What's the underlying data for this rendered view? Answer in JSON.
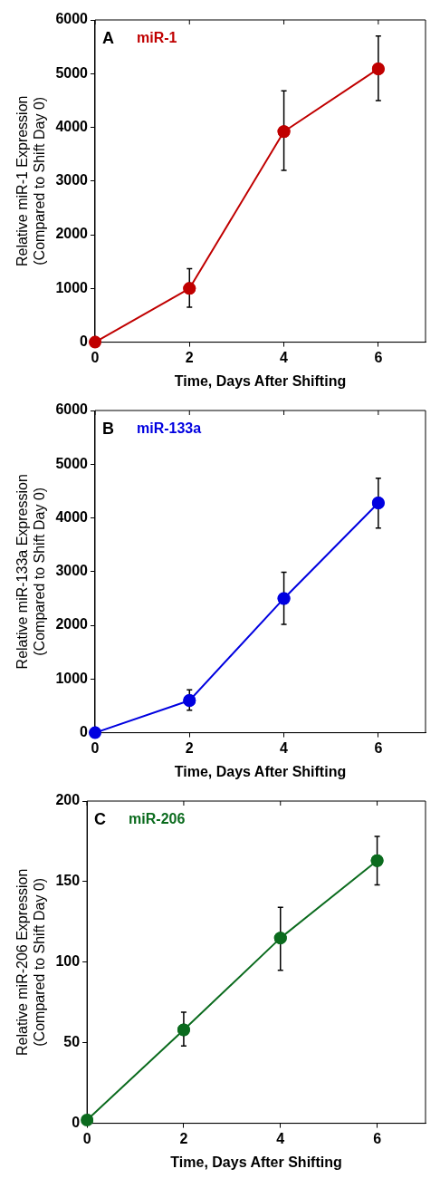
{
  "chart_data": [
    {
      "type": "line",
      "annotations": [
        "A"
      ],
      "xlabel": "Time, Days After Shifting",
      "ylabel": "Relative miR-1 Expression\n(Compared to Shift Day 0)",
      "x": [
        0,
        2,
        4,
        6
      ],
      "xlim": [
        0,
        7
      ],
      "xticks": [
        0,
        2,
        4,
        6
      ],
      "ylim": [
        0,
        6000
      ],
      "yticks": [
        0,
        1000,
        2000,
        3000,
        4000,
        5000,
        6000
      ],
      "marker": "circle",
      "line_style": "solid",
      "grid": false,
      "legend": "top left",
      "series": [
        {
          "name": "miR-1",
          "color": "#c00000",
          "values": [
            0,
            1000,
            3920,
            5090
          ],
          "errors": [
            null,
            [
              650,
              1370
            ],
            [
              3200,
              4680
            ],
            [
              4500,
              5700
            ]
          ]
        }
      ]
    },
    {
      "type": "line",
      "annotations": [
        "B"
      ],
      "xlabel": "Time, Days After Shifting",
      "ylabel": "Relative miR-133a Expression\n(Compared to Shift Day 0)",
      "x": [
        0,
        2,
        4,
        6
      ],
      "xlim": [
        0,
        7
      ],
      "xticks": [
        0,
        2,
        4,
        6
      ],
      "ylim": [
        0,
        6000
      ],
      "yticks": [
        0,
        1000,
        2000,
        3000,
        4000,
        5000,
        6000
      ],
      "marker": "circle",
      "line_style": "solid",
      "grid": false,
      "legend": "top left",
      "series": [
        {
          "name": "miR-133a",
          "color": "#0000e0",
          "values": [
            0,
            600,
            2500,
            4280
          ],
          "errors": [
            null,
            [
              420,
              800
            ],
            [
              2020,
              2990
            ],
            [
              3810,
              4740
            ]
          ]
        }
      ]
    },
    {
      "type": "line",
      "annotations": [
        "C"
      ],
      "xlabel": "Time, Days After Shifting",
      "ylabel": "Relative miR-206 Expression\n(Compared to Shift Day 0)",
      "x": [
        0,
        2,
        4,
        6
      ],
      "xlim": [
        0,
        7
      ],
      "xticks": [
        0,
        2,
        4,
        6
      ],
      "ylim": [
        0,
        200
      ],
      "yticks": [
        0,
        50,
        100,
        150,
        200
      ],
      "marker": "circle",
      "line_style": "solid",
      "grid": false,
      "legend": "top left",
      "series": [
        {
          "name": "miR-206",
          "color": "#0b6b1e",
          "values": [
            2,
            58,
            115,
            163
          ],
          "errors": [
            null,
            [
              48,
              69
            ],
            [
              95,
              134
            ],
            [
              148,
              178
            ]
          ]
        }
      ]
    }
  ]
}
